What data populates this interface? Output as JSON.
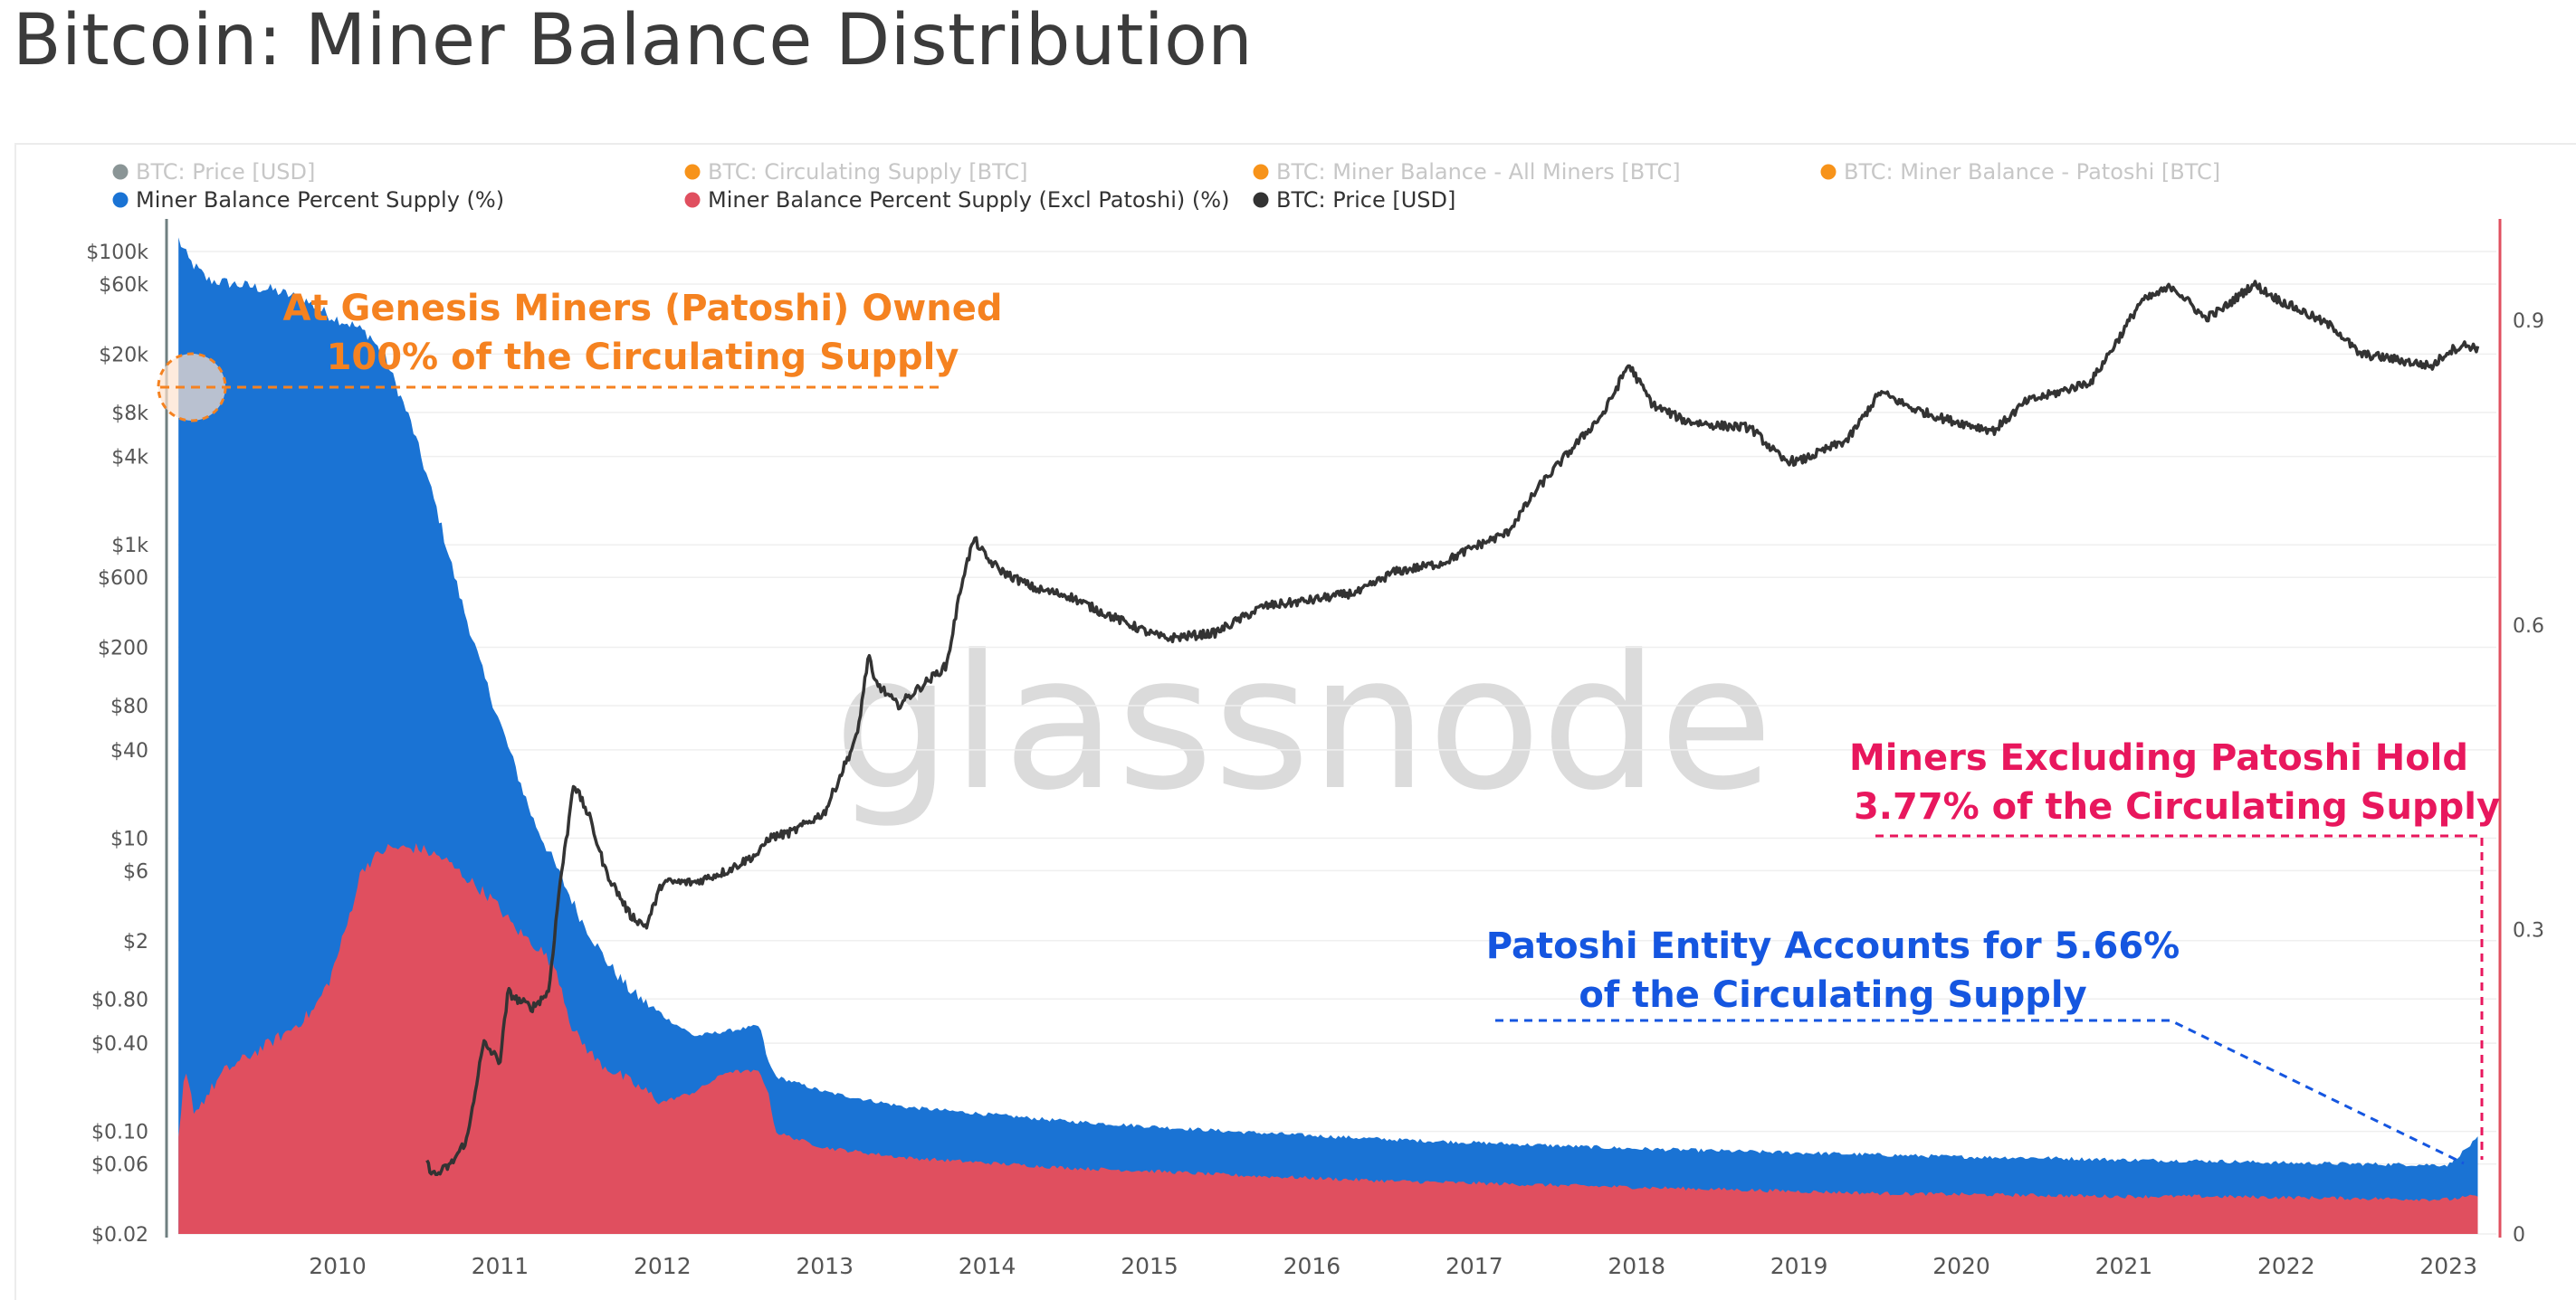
{
  "title": "Bitcoin: Miner Balance Distribution",
  "watermark": "glassnode",
  "legend": [
    {
      "label": "BTC: Price [USD]",
      "color": "#8a9596",
      "active": false
    },
    {
      "label": "BTC: Circulating Supply [BTC]",
      "color": "#f7931a",
      "active": false
    },
    {
      "label": "BTC: Miner Balance - All Miners [BTC]",
      "color": "#f7931a",
      "active": false
    },
    {
      "label": "BTC: Miner Balance - Patoshi [BTC]",
      "color": "#f7931a",
      "active": false
    },
    {
      "label": "Miner Balance Percent Supply (%)",
      "color": "#1a73d4",
      "active": true
    },
    {
      "label": "Miner Balance Percent Supply (Excl Patoshi) (%)",
      "color": "#e04f5f",
      "active": true
    },
    {
      "label": "BTC: Price [USD]",
      "color": "#333333",
      "active": true
    }
  ],
  "annotations": {
    "genesis": {
      "line1": "At Genesis Miners (Patoshi) Owned",
      "line2": "100% of the Circulating Supply",
      "color": "#f58220"
    },
    "excl_patoshi": {
      "line1": "Miners Excluding Patoshi Hold",
      "line2": "3.77% of the Circulating Supply",
      "color": "#e8175d"
    },
    "patoshi": {
      "line1": "Patoshi Entity Accounts for 5.66%",
      "line2": "of the Circulating Supply",
      "color": "#1556e0"
    }
  },
  "chart_data": {
    "type": "area",
    "x_axis": {
      "ticks": [
        "2010",
        "2011",
        "2012",
        "2013",
        "2014",
        "2015",
        "2016",
        "2017",
        "2018",
        "2019",
        "2020",
        "2021",
        "2022",
        "2023"
      ]
    },
    "y_left": {
      "scale": "log",
      "unit": "USD",
      "ticks": [
        {
          "label": "$100k",
          "value": 100000
        },
        {
          "label": "$60k",
          "value": 60000
        },
        {
          "label": "$20k",
          "value": 20000
        },
        {
          "label": "$8k",
          "value": 8000
        },
        {
          "label": "$4k",
          "value": 4000
        },
        {
          "label": "$1k",
          "value": 1000
        },
        {
          "label": "$600",
          "value": 600
        },
        {
          "label": "$200",
          "value": 200
        },
        {
          "label": "$80",
          "value": 80
        },
        {
          "label": "$40",
          "value": 40
        },
        {
          "label": "$10",
          "value": 10
        },
        {
          "label": "$6",
          "value": 6
        },
        {
          "label": "$2",
          "value": 2
        },
        {
          "label": "$0.80",
          "value": 0.8
        },
        {
          "label": "$0.40",
          "value": 0.4
        },
        {
          "label": "$0.10",
          "value": 0.1
        },
        {
          "label": "$0.06",
          "value": 0.06
        },
        {
          "label": "$0.02",
          "value": 0.02
        }
      ]
    },
    "y_right": {
      "scale": "linear",
      "range": [
        0,
        1
      ],
      "ticks": [
        {
          "label": "0",
          "value": 0
        },
        {
          "label": "0.3",
          "value": 0.3
        },
        {
          "label": "0.6",
          "value": 0.6
        },
        {
          "label": "0.9",
          "value": 0.9
        }
      ]
    },
    "series": [
      {
        "name": "Miner Balance Percent Supply (%)",
        "axis": "right",
        "color": "#1a73d4",
        "x": [
          2009.02,
          2009.08,
          2009.2,
          2009.4,
          2009.6,
          2009.8,
          2009.95,
          2010.1,
          2010.2,
          2010.3,
          2010.45,
          2010.6,
          2010.75,
          2010.9,
          2011.05,
          2011.2,
          2011.35,
          2011.5,
          2011.65,
          2011.8,
          2012.0,
          2012.2,
          2012.4,
          2012.6,
          2012.65,
          2012.7,
          2013.0,
          2013.5,
          2014.0,
          2014.5,
          2015.0,
          2015.5,
          2016.0,
          2016.5,
          2017.0,
          2017.5,
          2018.0,
          2018.5,
          2019.0,
          2019.5,
          2020.0,
          2020.5,
          2021.0,
          2021.5,
          2022.0,
          2022.5,
          2023.0,
          2023.18
        ],
        "y": [
          0.98,
          0.96,
          0.94,
          0.935,
          0.93,
          0.92,
          0.905,
          0.895,
          0.885,
          0.86,
          0.8,
          0.72,
          0.63,
          0.55,
          0.48,
          0.41,
          0.36,
          0.31,
          0.27,
          0.24,
          0.215,
          0.195,
          0.2,
          0.205,
          0.17,
          0.155,
          0.14,
          0.125,
          0.118,
          0.111,
          0.106,
          0.101,
          0.097,
          0.093,
          0.09,
          0.087,
          0.084,
          0.082,
          0.08,
          0.078,
          0.076,
          0.075,
          0.073,
          0.072,
          0.07,
          0.069,
          0.068,
          0.0943
        ]
      },
      {
        "name": "Miner Balance Percent Supply (Excl Patoshi) (%)",
        "axis": "right",
        "color": "#e04f5f",
        "x": [
          2009.02,
          2009.06,
          2009.12,
          2009.3,
          2009.5,
          2009.7,
          2009.85,
          2009.95,
          2010.05,
          2010.15,
          2010.3,
          2010.5,
          2010.65,
          2010.8,
          2010.95,
          2011.1,
          2011.25,
          2011.35,
          2011.45,
          2011.6,
          2011.8,
          2012.0,
          2012.2,
          2012.4,
          2012.6,
          2012.65,
          2012.7,
          2013.0,
          2013.5,
          2014.0,
          2014.5,
          2015.0,
          2015.5,
          2016.0,
          2016.5,
          2017.0,
          2017.5,
          2018.0,
          2018.5,
          2019.0,
          2019.5,
          2020.0,
          2020.5,
          2021.0,
          2021.5,
          2022.0,
          2022.5,
          2023.0,
          2023.18
        ],
        "y": [
          0.09,
          0.16,
          0.12,
          0.16,
          0.18,
          0.2,
          0.22,
          0.25,
          0.3,
          0.36,
          0.38,
          0.38,
          0.37,
          0.35,
          0.33,
          0.3,
          0.28,
          0.26,
          0.2,
          0.17,
          0.15,
          0.13,
          0.14,
          0.16,
          0.16,
          0.14,
          0.1,
          0.085,
          0.075,
          0.07,
          0.065,
          0.062,
          0.058,
          0.055,
          0.052,
          0.05,
          0.048,
          0.046,
          0.044,
          0.042,
          0.04,
          0.039,
          0.038,
          0.037,
          0.037,
          0.036,
          0.035,
          0.034,
          0.0377
        ]
      },
      {
        "name": "BTC: Price [USD]",
        "axis": "left",
        "color": "#333333",
        "x": [
          2010.55,
          2010.6,
          2010.7,
          2010.8,
          2010.85,
          2010.9,
          2011.0,
          2011.05,
          2011.1,
          2011.2,
          2011.3,
          2011.37,
          2011.42,
          2011.45,
          2011.55,
          2011.65,
          2011.8,
          2011.9,
          2012.0,
          2012.2,
          2012.4,
          2012.6,
          2012.65,
          2012.8,
          2013.0,
          2013.2,
          2013.27,
          2013.3,
          2013.45,
          2013.6,
          2013.75,
          2013.85,
          2013.92,
          2014.0,
          2014.1,
          2014.3,
          2014.5,
          2014.7,
          2015.0,
          2015.1,
          2015.4,
          2015.7,
          2016.0,
          2016.3,
          2016.5,
          2016.8,
          2017.0,
          2017.2,
          2017.4,
          2017.6,
          2017.8,
          2017.95,
          2018.1,
          2018.3,
          2018.5,
          2018.7,
          2018.9,
          2019.0,
          2019.3,
          2019.5,
          2019.7,
          2019.9,
          2020.2,
          2020.4,
          2020.6,
          2020.8,
          2021.0,
          2021.1,
          2021.3,
          2021.5,
          2021.6,
          2021.8,
          2021.95,
          2022.1,
          2022.3,
          2022.45,
          2022.6,
          2022.9,
          2023.0,
          2023.1,
          2023.18
        ],
        "y": [
          0.06,
          0.05,
          0.06,
          0.09,
          0.2,
          0.4,
          0.3,
          0.9,
          0.8,
          0.7,
          0.9,
          5,
          12,
          24,
          14,
          6,
          3,
          2.5,
          5,
          5,
          6,
          8,
          10,
          11,
          15,
          50,
          180,
          120,
          80,
          110,
          150,
          600,
          1100,
          800,
          650,
          500,
          450,
          350,
          250,
          230,
          250,
          380,
          420,
          480,
          650,
          750,
          970,
          1200,
          2500,
          4500,
          8000,
          17000,
          9000,
          7000,
          6500,
          6300,
          3800,
          3700,
          5200,
          11000,
          8500,
          7200,
          6000,
          9500,
          11000,
          13000,
          29000,
          45000,
          58000,
          35000,
          40000,
          60000,
          47000,
          39000,
          30000,
          20000,
          19000,
          16500,
          21000,
          23000,
          22000
        ]
      }
    ]
  }
}
